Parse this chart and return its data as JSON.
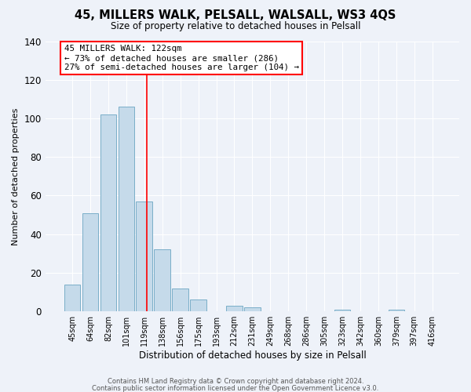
{
  "title": "45, MILLERS WALK, PELSALL, WALSALL, WS3 4QS",
  "subtitle": "Size of property relative to detached houses in Pelsall",
  "xlabel": "Distribution of detached houses by size in Pelsall",
  "ylabel": "Number of detached properties",
  "footer_lines": [
    "Contains HM Land Registry data © Crown copyright and database right 2024.",
    "Contains public sector information licensed under the Open Government Licence v3.0."
  ],
  "bin_labels": [
    "45sqm",
    "64sqm",
    "82sqm",
    "101sqm",
    "119sqm",
    "138sqm",
    "156sqm",
    "175sqm",
    "193sqm",
    "212sqm",
    "231sqm",
    "249sqm",
    "268sqm",
    "286sqm",
    "305sqm",
    "323sqm",
    "342sqm",
    "360sqm",
    "379sqm",
    "397sqm",
    "416sqm"
  ],
  "bar_values": [
    14,
    51,
    102,
    106,
    57,
    32,
    12,
    6,
    0,
    3,
    2,
    0,
    0,
    0,
    0,
    1,
    0,
    0,
    1,
    0,
    0
  ],
  "bar_color": "#c5daea",
  "bar_edge_color": "#7aaec8",
  "vline_color": "red",
  "annotation_title": "45 MILLERS WALK: 122sqm",
  "annotation_line1": "← 73% of detached houses are smaller (286)",
  "annotation_line2": "27% of semi-detached houses are larger (104) →",
  "annotation_box_color": "white",
  "annotation_box_edge_color": "red",
  "ylim": [
    0,
    140
  ],
  "yticks": [
    0,
    20,
    40,
    60,
    80,
    100,
    120,
    140
  ],
  "background_color": "#eef2f9",
  "grid_color": "white"
}
